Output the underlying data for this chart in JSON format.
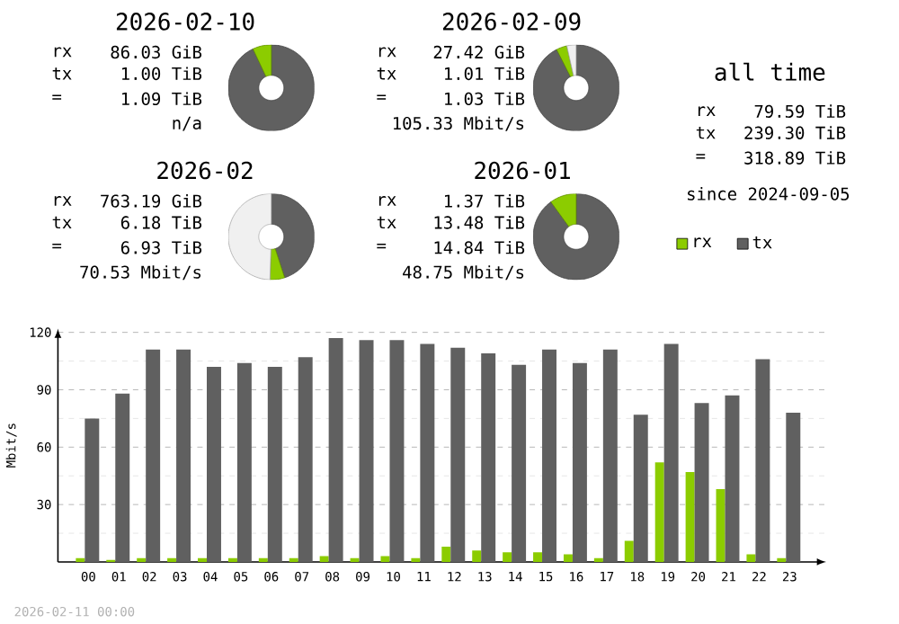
{
  "chart_data": [
    {
      "type": "donut",
      "title": "2026-02-10",
      "categories": [
        null,
        null
      ],
      "values": [
        93,
        7
      ],
      "colors": [
        "#606060",
        "#8ccc00"
      ],
      "annotations": [
        "rx",
        "86.03 GiB",
        "tx",
        "1.00 TiB",
        "=",
        "1.09 TiB",
        "n/a"
      ]
    },
    {
      "type": "donut",
      "title": "2026-02-09",
      "categories": [
        null,
        null,
        null
      ],
      "values": [
        92.5,
        4,
        3.5
      ],
      "colors": [
        "#606060",
        "#8ccc00",
        "#f0f0f0"
      ],
      "annotations": [
        "rx",
        "27.42 GiB",
        "tx",
        "1.01 TiB",
        "=",
        "1.03 TiB",
        "105.33 Mbit/s"
      ]
    },
    {
      "type": "donut",
      "title": "2026-02",
      "categories": [
        null,
        null,
        null
      ],
      "values": [
        45,
        5.5,
        49.5
      ],
      "colors": [
        "#606060",
        "#8ccc00",
        "#f0f0f0"
      ],
      "annotations": [
        "rx",
        "763.19 GiB",
        "tx",
        "6.18 TiB",
        "=",
        "6.93 TiB",
        "70.53 Mbit/s"
      ]
    },
    {
      "type": "donut",
      "title": "2026-01",
      "categories": [
        null,
        null
      ],
      "values": [
        90,
        10
      ],
      "colors": [
        "#606060",
        "#8ccc00"
      ],
      "annotations": [
        "rx",
        "1.37 TiB",
        "tx",
        "13.48 TiB",
        "=",
        "14.84 TiB",
        "48.75 Mbit/s"
      ]
    },
    {
      "type": "other",
      "title": "all time",
      "annotations": [
        "rx",
        "79.59 TiB",
        "tx",
        "239.30 TiB",
        "=",
        "318.89 TiB",
        "since 2024-09-05"
      ]
    },
    {
      "type": "bar",
      "ylabel": "Mbit/s",
      "legend": "top right",
      "grid": "y",
      "categories": [
        "00",
        "01",
        "02",
        "03",
        "04",
        "05",
        "06",
        "07",
        "08",
        "09",
        "10",
        "11",
        "12",
        "13",
        "14",
        "15",
        "16",
        "17",
        "18",
        "19",
        "20",
        "21",
        "22",
        "23"
      ],
      "series": [
        {
          "name": "rx",
          "color": "#8ccc00",
          "values": [
            2,
            1,
            2,
            2,
            2,
            2,
            2,
            2,
            3,
            2,
            3,
            2,
            8,
            6,
            5,
            5,
            4,
            2,
            11,
            52,
            47,
            38,
            4,
            2
          ]
        },
        {
          "name": "tx",
          "color": "#606060",
          "values": [
            75,
            88,
            111,
            111,
            102,
            104,
            102,
            107,
            117,
            116,
            116,
            114,
            112,
            109,
            103,
            111,
            104,
            111,
            77,
            114,
            83,
            87,
            106,
            78
          ]
        }
      ],
      "ylim": [
        0,
        122
      ],
      "yticks": [
        {
          "value": 15,
          "label": null
        },
        30,
        {
          "value": 45,
          "label": null
        },
        60,
        {
          "value": 75,
          "label": null
        },
        90,
        {
          "value": 105,
          "label": null
        },
        120
      ],
      "annotations": [
        "2026-02-11 00:00"
      ]
    }
  ]
}
